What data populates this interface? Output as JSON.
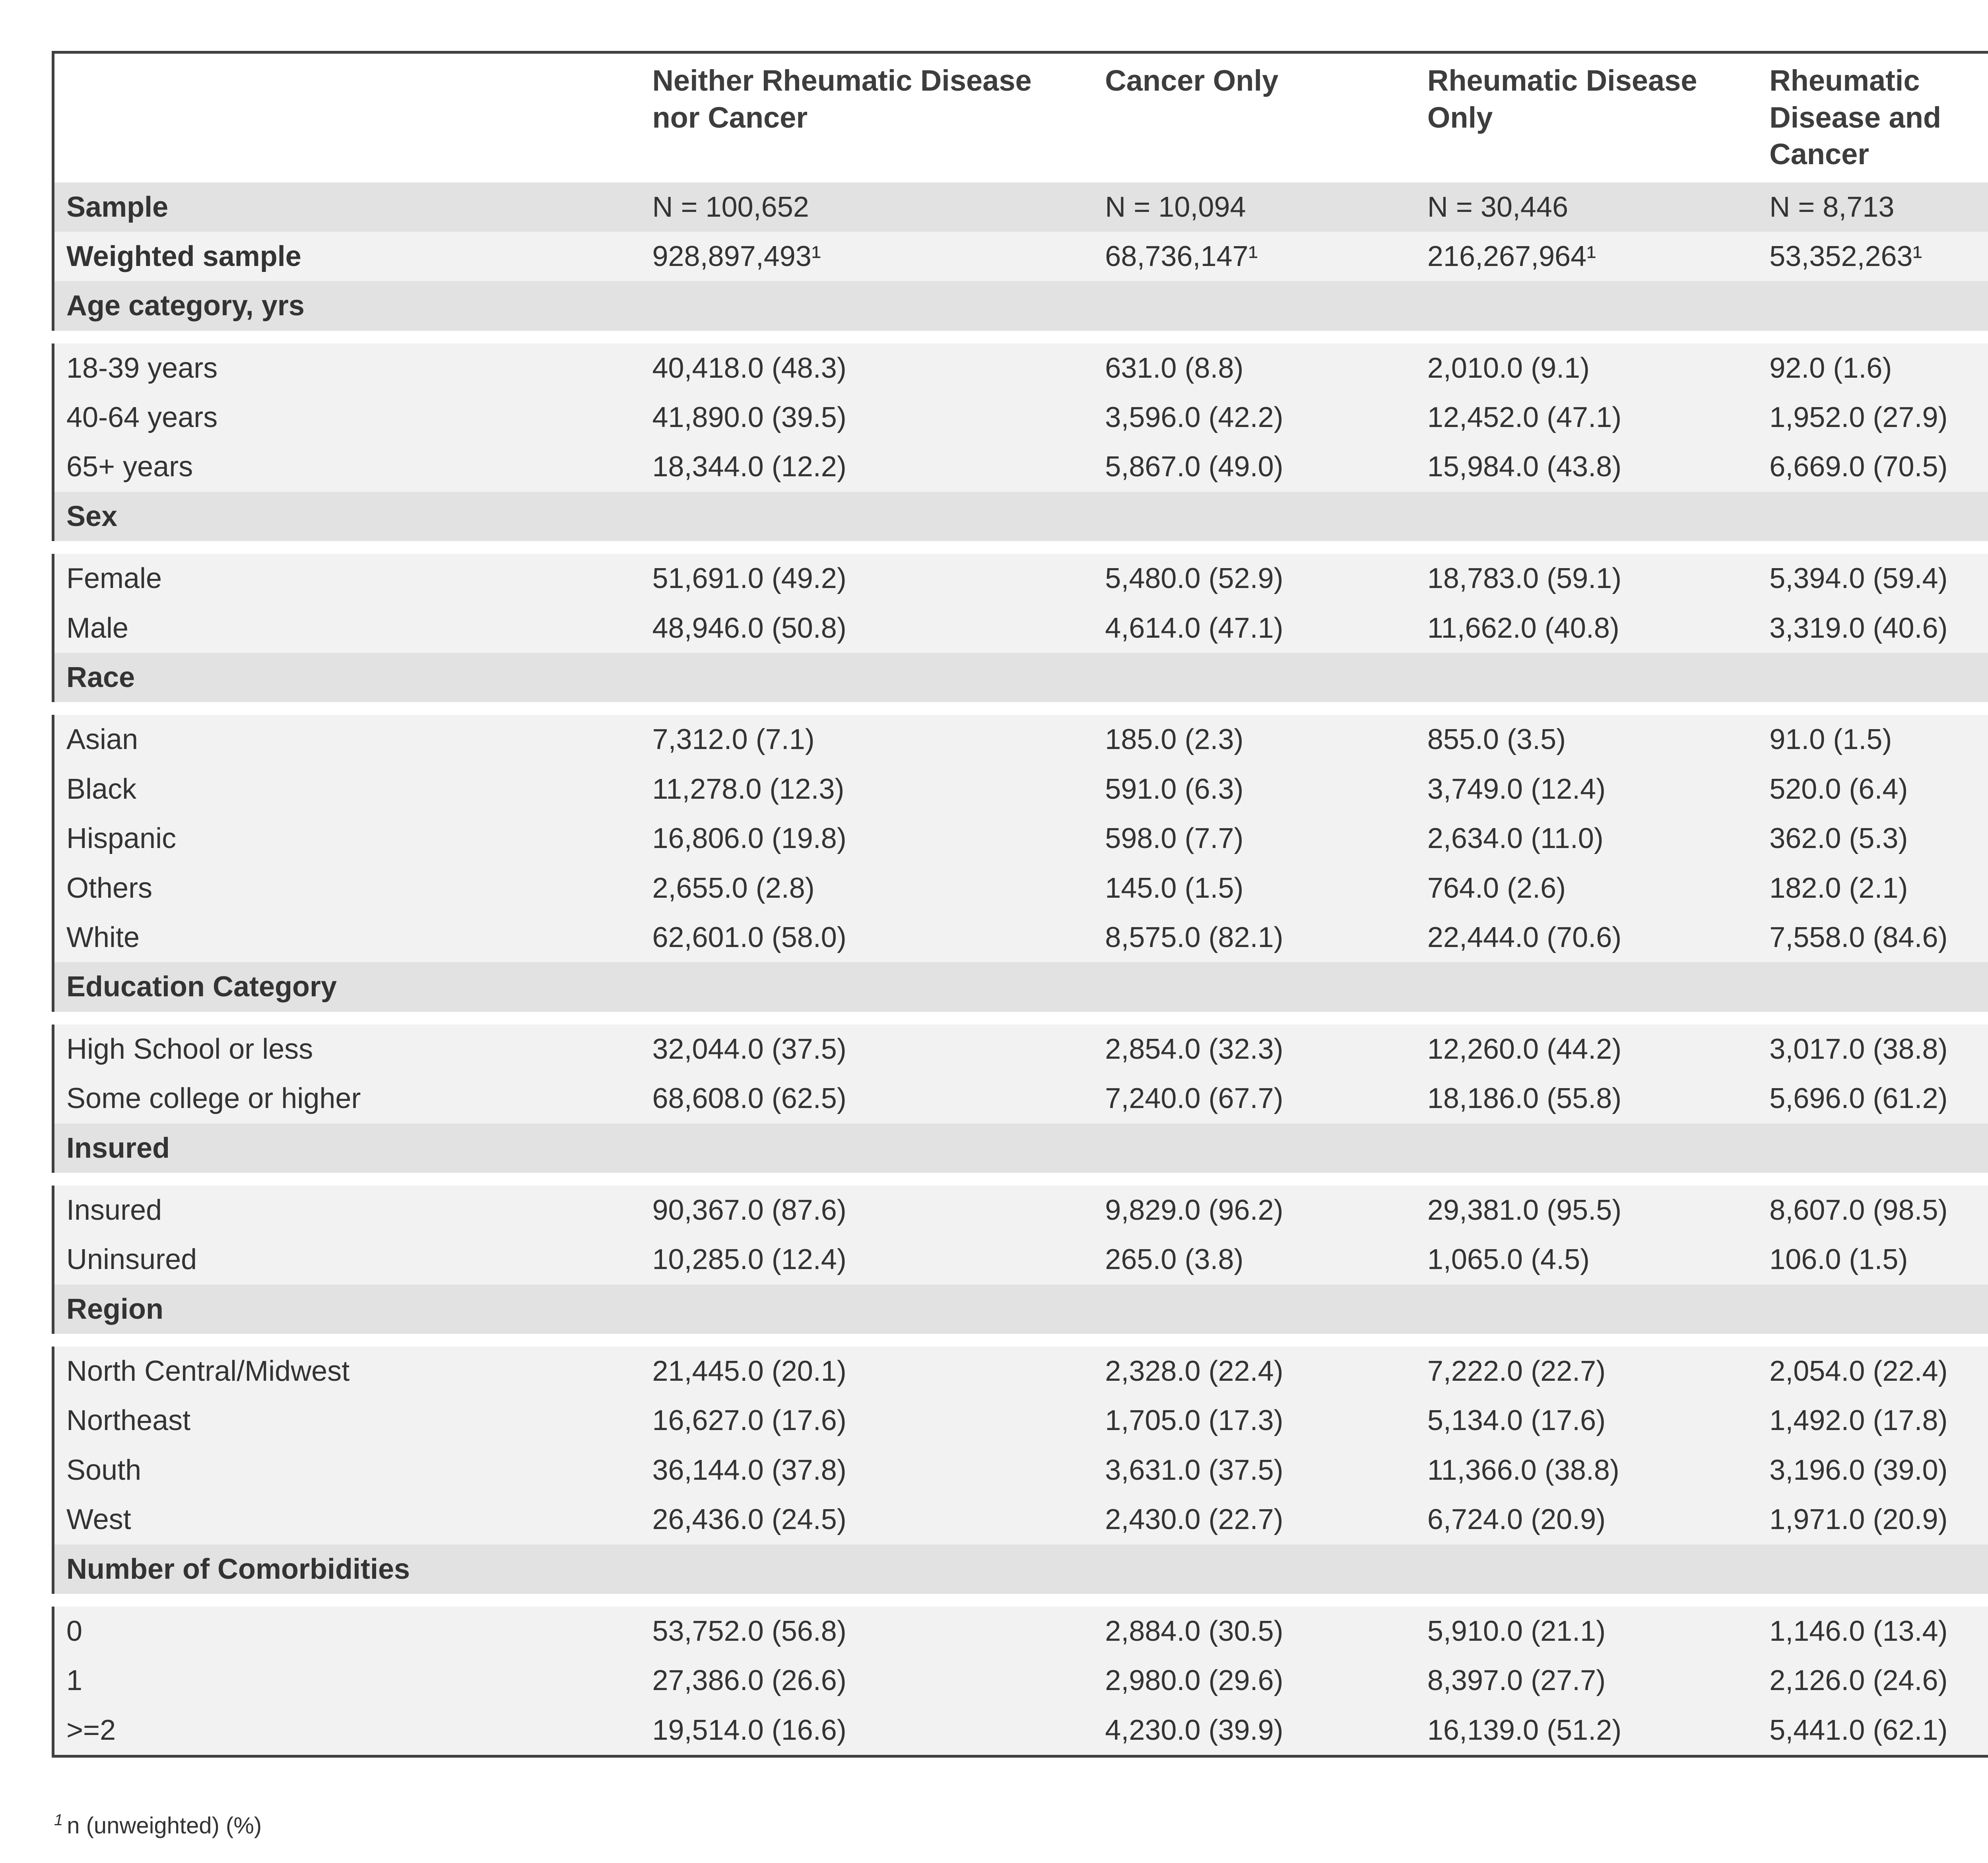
{
  "page": {
    "background": "#ffffff",
    "border_color": "#404040",
    "band_color": "#e2e2e2",
    "stripe_color": "#f2f2f2",
    "text_color": "#333333"
  },
  "table": {
    "columns": [
      "",
      "Neither Rheumatic Disease nor Cancer",
      "Cancer Only",
      "Rheumatic Disease Only",
      "Rheumatic Disease and Cancer"
    ],
    "rows": [
      {
        "label": "Sample",
        "bold": true,
        "shaded": true,
        "values": [
          "N = 100,652",
          "N = 10,094",
          "N = 30,446",
          "N = 8,713"
        ]
      },
      {
        "label": "Weighted sample",
        "bold": true,
        "shaded": false,
        "values": [
          "928,897,493¹",
          "68,736,147¹",
          "216,267,964¹",
          "53,352,263¹"
        ]
      },
      {
        "label": "Age category, yrs",
        "section": true,
        "bold": true,
        "shaded": true,
        "values": [
          "",
          "",
          "",
          ""
        ]
      },
      {
        "label": "18-39 years",
        "values": [
          "40,418.0 (48.3)",
          "631.0 (8.8)",
          "2,010.0 (9.1)",
          "92.0 (1.6)"
        ]
      },
      {
        "label": "40-64 years",
        "values": [
          "41,890.0 (39.5)",
          "3,596.0 (42.2)",
          "12,452.0 (47.1)",
          "1,952.0 (27.9)"
        ]
      },
      {
        "label": "65+ years",
        "values": [
          "18,344.0 (12.2)",
          "5,867.0 (49.0)",
          "15,984.0 (43.8)",
          "6,669.0 (70.5)"
        ]
      },
      {
        "label": "Sex",
        "section": true,
        "bold": true,
        "shaded": true,
        "values": [
          "",
          "",
          "",
          ""
        ]
      },
      {
        "label": "Female",
        "values": [
          "51,691.0 (49.2)",
          "5,480.0 (52.9)",
          "18,783.0 (59.1)",
          "5,394.0 (59.4)"
        ]
      },
      {
        "label": "Male",
        "values": [
          "48,946.0 (50.8)",
          "4,614.0 (47.1)",
          "11,662.0 (40.8)",
          "3,319.0 (40.6)"
        ]
      },
      {
        "label": "Race",
        "section": true,
        "bold": true,
        "shaded": true,
        "values": [
          "",
          "",
          "",
          ""
        ]
      },
      {
        "label": "Asian",
        "values": [
          "7,312.0 (7.1)",
          "185.0 (2.3)",
          "855.0 (3.5)",
          "91.0 (1.5)"
        ]
      },
      {
        "label": "Black",
        "values": [
          "11,278.0 (12.3)",
          "591.0 (6.3)",
          "3,749.0 (12.4)",
          "520.0 (6.4)"
        ]
      },
      {
        "label": "Hispanic",
        "values": [
          "16,806.0 (19.8)",
          "598.0 (7.7)",
          "2,634.0 (11.0)",
          "362.0 (5.3)"
        ]
      },
      {
        "label": "Others",
        "values": [
          "2,655.0 (2.8)",
          "145.0 (1.5)",
          "764.0 (2.6)",
          "182.0 (2.1)"
        ]
      },
      {
        "label": "White",
        "values": [
          "62,601.0 (58.0)",
          "8,575.0 (82.1)",
          "22,444.0 (70.6)",
          "7,558.0 (84.6)"
        ]
      },
      {
        "label": "Education Category",
        "section": true,
        "bold": true,
        "shaded": true,
        "values": [
          "",
          "",
          "",
          ""
        ]
      },
      {
        "label": "High School or less",
        "values": [
          "32,044.0 (37.5)",
          "2,854.0 (32.3)",
          "12,260.0 (44.2)",
          "3,017.0 (38.8)"
        ]
      },
      {
        "label": "Some college or higher",
        "values": [
          "68,608.0 (62.5)",
          "7,240.0 (67.7)",
          "18,186.0 (55.8)",
          "5,696.0 (61.2)"
        ]
      },
      {
        "label": "Insured",
        "section": true,
        "bold": true,
        "shaded": true,
        "values": [
          "",
          "",
          "",
          ""
        ]
      },
      {
        "label": "Insured",
        "values": [
          "90,367.0 (87.6)",
          "9,829.0 (96.2)",
          "29,381.0 (95.5)",
          "8,607.0 (98.5)"
        ]
      },
      {
        "label": "Uninsured",
        "values": [
          "10,285.0 (12.4)",
          "265.0 (3.8)",
          "1,065.0 (4.5)",
          "106.0 (1.5)"
        ]
      },
      {
        "label": "Region",
        "section": true,
        "bold": true,
        "shaded": true,
        "values": [
          "",
          "",
          "",
          ""
        ]
      },
      {
        "label": "North Central/Midwest",
        "values": [
          "21,445.0 (20.1)",
          "2,328.0 (22.4)",
          "7,222.0 (22.7)",
          "2,054.0 (22.4)"
        ]
      },
      {
        "label": "Northeast",
        "values": [
          "16,627.0 (17.6)",
          "1,705.0 (17.3)",
          "5,134.0 (17.6)",
          "1,492.0 (17.8)"
        ]
      },
      {
        "label": "South",
        "values": [
          "36,144.0 (37.8)",
          "3,631.0 (37.5)",
          "11,366.0 (38.8)",
          "3,196.0 (39.0)"
        ]
      },
      {
        "label": "West",
        "values": [
          "26,436.0 (24.5)",
          "2,430.0 (22.7)",
          "6,724.0 (20.9)",
          "1,971.0 (20.9)"
        ]
      },
      {
        "label": "Number of Comorbidities",
        "section": true,
        "bold": true,
        "shaded": true,
        "values": [
          "",
          "",
          "",
          ""
        ]
      },
      {
        "label": "0",
        "values": [
          "53,752.0 (56.8)",
          "2,884.0 (30.5)",
          "5,910.0 (21.1)",
          "1,146.0 (13.4)"
        ]
      },
      {
        "label": "1",
        "values": [
          "27,386.0 (26.6)",
          "2,980.0 (29.6)",
          "8,397.0 (27.7)",
          "2,126.0 (24.6)"
        ]
      },
      {
        "label": ">=2",
        "values": [
          "19,514.0 (16.6)",
          "4,230.0 (39.9)",
          "16,139.0 (51.2)",
          "5,441.0 (62.1)"
        ]
      }
    ]
  },
  "footnote": {
    "marker": "1",
    "text": "n (unweighted) (%)"
  }
}
